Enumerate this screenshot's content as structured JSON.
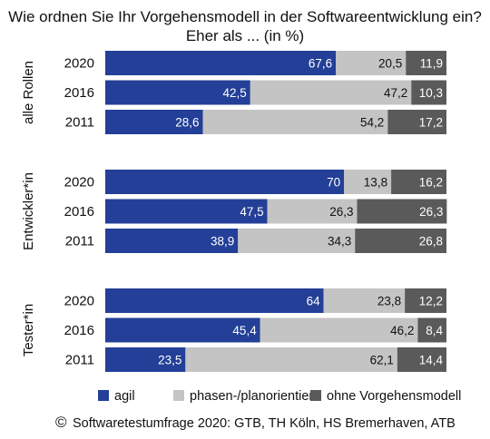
{
  "chart_data": {
    "type": "bar",
    "orientation": "horizontal",
    "stacked": true,
    "title_line1": "Wie ordnen Sie Ihr Vorgehensmodell in der Softwareentwicklung ein?",
    "title_line2": "Eher als ... (in %)",
    "xlim": [
      0,
      100
    ],
    "grid": false,
    "legend_position": "bottom",
    "series": [
      {
        "name": "agil",
        "color": "#233f97",
        "text_color": "#ffffff"
      },
      {
        "name": "phasen-/planorientiert",
        "color": "#c4c4c4",
        "text_color": "#111111"
      },
      {
        "name": "ohne Vorgehensmodell",
        "color": "#5a5a5a",
        "text_color": "#ffffff"
      }
    ],
    "groups": [
      {
        "name": "alle Rollen",
        "rows": [
          {
            "year": "2020",
            "values": [
              67.6,
              20.5,
              11.9
            ],
            "labels": [
              "67,6",
              "20,5",
              "11,9"
            ]
          },
          {
            "year": "2016",
            "values": [
              42.5,
              47.2,
              10.3
            ],
            "labels": [
              "42,5",
              "47,2",
              "10,3"
            ]
          },
          {
            "year": "2011",
            "values": [
              28.6,
              54.2,
              17.2
            ],
            "labels": [
              "28,6",
              "54,2",
              "17,2"
            ]
          }
        ]
      },
      {
        "name": "Entwickler*in",
        "rows": [
          {
            "year": "2020",
            "values": [
              70,
              13.8,
              16.2
            ],
            "labels": [
              "70",
              "13,8",
              "16,2"
            ]
          },
          {
            "year": "2016",
            "values": [
              47.5,
              26.3,
              26.3
            ],
            "labels": [
              "47,5",
              "26,3",
              "26,3"
            ]
          },
          {
            "year": "2011",
            "values": [
              38.9,
              34.3,
              26.8
            ],
            "labels": [
              "38,9",
              "34,3",
              "26,8"
            ]
          }
        ]
      },
      {
        "name": "Tester*in",
        "rows": [
          {
            "year": "2020",
            "values": [
              64,
              23.8,
              12.2
            ],
            "labels": [
              "64",
              "23,8",
              "12,2"
            ]
          },
          {
            "year": "2016",
            "values": [
              45.4,
              46.2,
              8.4
            ],
            "labels": [
              "45,4",
              "46,2",
              "8,4"
            ]
          },
          {
            "year": "2011",
            "values": [
              23.5,
              62.1,
              14.4
            ],
            "labels": [
              "23,5",
              "62,1",
              "14,4"
            ]
          }
        ]
      }
    ],
    "source": "Softwaretestumfrage 2020: GTB, TH Köln, HS Bremerhaven, ATB",
    "copyright_symbol": "©"
  }
}
